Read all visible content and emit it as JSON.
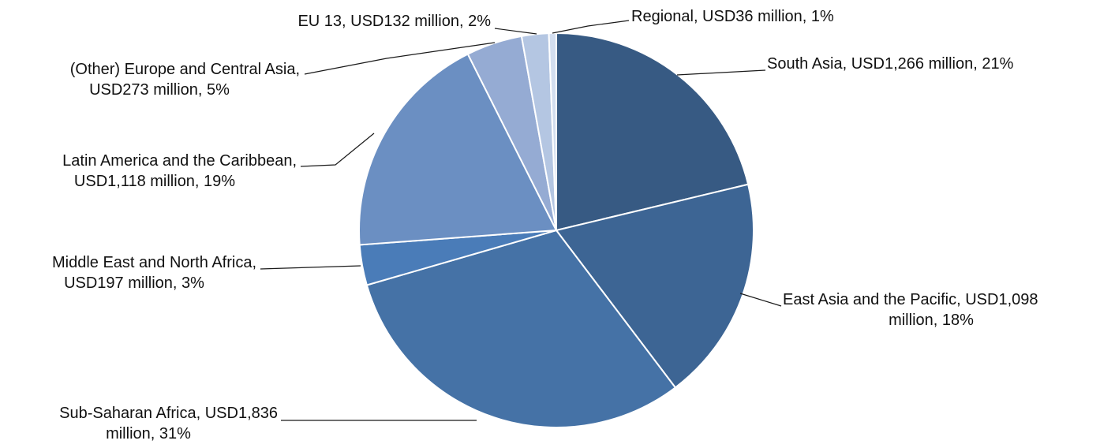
{
  "chart_data": {
    "type": "pie",
    "title": "",
    "slices": [
      {
        "label": "South Asia",
        "value": 1266,
        "value_text": "USD1,266 million",
        "percent": 21,
        "color": "#375a83"
      },
      {
        "label": "East Asia and the Pacific",
        "value": 1098,
        "value_text": "USD1,098 million",
        "percent": 18,
        "color": "#3d6594"
      },
      {
        "label": "Sub-Saharan Africa",
        "value": 1836,
        "value_text": "USD1,836 million",
        "percent": 31,
        "color": "#4572a6"
      },
      {
        "label": "Middle East and North Africa",
        "value": 197,
        "value_text": "USD197 million",
        "percent": 3,
        "color": "#4a7cb8"
      },
      {
        "label": "Latin America and the Caribbean",
        "value": 1118,
        "value_text": "USD1,118 million",
        "percent": 19,
        "color": "#6b8fc2"
      },
      {
        "label": "(Other) Europe and Central Asia",
        "value": 273,
        "value_text": "USD273 million",
        "percent": 5,
        "color": "#95abd3"
      },
      {
        "label": "EU 13",
        "value": 132,
        "value_text": "USD132 million",
        "percent": 2,
        "color": "#b4c6e2"
      },
      {
        "label": "Regional",
        "value": 36,
        "value_text": "USD36 million",
        "percent": 1,
        "color": "#d3deef"
      }
    ],
    "data_labels": [
      {
        "lines": [
          "South Asia, USD1,266 million, 21%"
        ]
      },
      {
        "lines": [
          "East Asia and the Pacific, USD1,098",
          "million, 18%"
        ]
      },
      {
        "lines": [
          "Sub-Saharan Africa, USD1,836",
          "million, 31%"
        ]
      },
      {
        "lines": [
          "Middle East and North Africa,",
          "USD197 million, 3%"
        ]
      },
      {
        "lines": [
          "Latin America and the Caribbean,",
          "USD1,118 million, 19%"
        ]
      },
      {
        "lines": [
          "(Other) Europe and Central Asia,",
          "USD273 million, 5%"
        ]
      },
      {
        "lines": [
          "EU 13, USD132 million, 2%"
        ]
      },
      {
        "lines": [
          "Regional, USD36 million, 1%"
        ]
      }
    ]
  }
}
